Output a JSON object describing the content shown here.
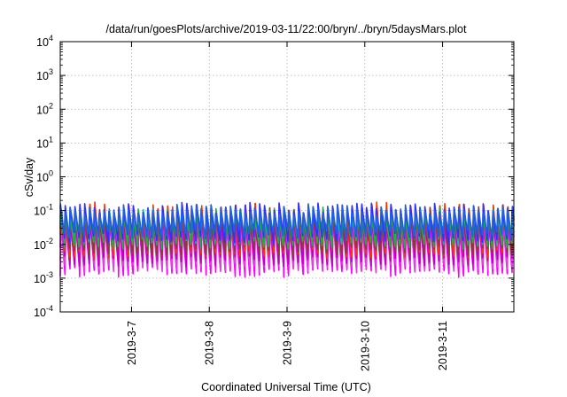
{
  "chart_data": {
    "type": "line",
    "title": "/data/run/goesPlots/archive/2019-03-11/22:00/bryn/../bryn/5daysMars.plot",
    "xlabel": "Coordinated Universal Time (UTC)",
    "ylabel": "cSv/day",
    "yscale": "log",
    "ylim": [
      0.0001,
      10000
    ],
    "y_ticks": [
      {
        "base": "10",
        "exp": "-4"
      },
      {
        "base": "10",
        "exp": "-3"
      },
      {
        "base": "10",
        "exp": "-2"
      },
      {
        "base": "10",
        "exp": "-1"
      },
      {
        "base": "10",
        "exp": "0"
      },
      {
        "base": "10",
        "exp": "1"
      },
      {
        "base": "10",
        "exp": "2"
      },
      {
        "base": "10",
        "exp": "3"
      },
      {
        "base": "10",
        "exp": "4"
      }
    ],
    "xlim": [
      "2019-03-06 02:00",
      "2019-03-11 22:00"
    ],
    "x_ticks": [
      {
        "label": "2019-3-7",
        "date": "2019-03-07"
      },
      {
        "label": "2019-3-8",
        "date": "2019-03-08"
      },
      {
        "label": "2019-3-9",
        "date": "2019-03-09"
      },
      {
        "label": "2019-3-10",
        "date": "2019-03-10"
      },
      {
        "label": "2019-3-11",
        "date": "2019-03-11"
      }
    ],
    "grid": true,
    "cycle_hours": 1.5,
    "series": [
      {
        "color": "#ff00ff",
        "peak": 0.04,
        "trough": 0.0015
      },
      {
        "color": "#e040e0",
        "peak": 0.05,
        "trough": 0.002
      },
      {
        "color": "#c000c0",
        "peak": 0.06,
        "trough": 0.003
      },
      {
        "color": "#ff3300",
        "peak": 0.13,
        "trough": 0.005
      },
      {
        "color": "#8a3a3a",
        "peak": 0.09,
        "trough": 0.006
      },
      {
        "color": "#00c0c0",
        "peak": 0.08,
        "trough": 0.012
      },
      {
        "color": "#20b040",
        "peak": 0.09,
        "trough": 0.01
      },
      {
        "color": "#3030ff",
        "peak": 0.12,
        "trough": 0.015
      },
      {
        "color": "#2060e0",
        "peak": 0.11,
        "trough": 0.02
      }
    ]
  }
}
